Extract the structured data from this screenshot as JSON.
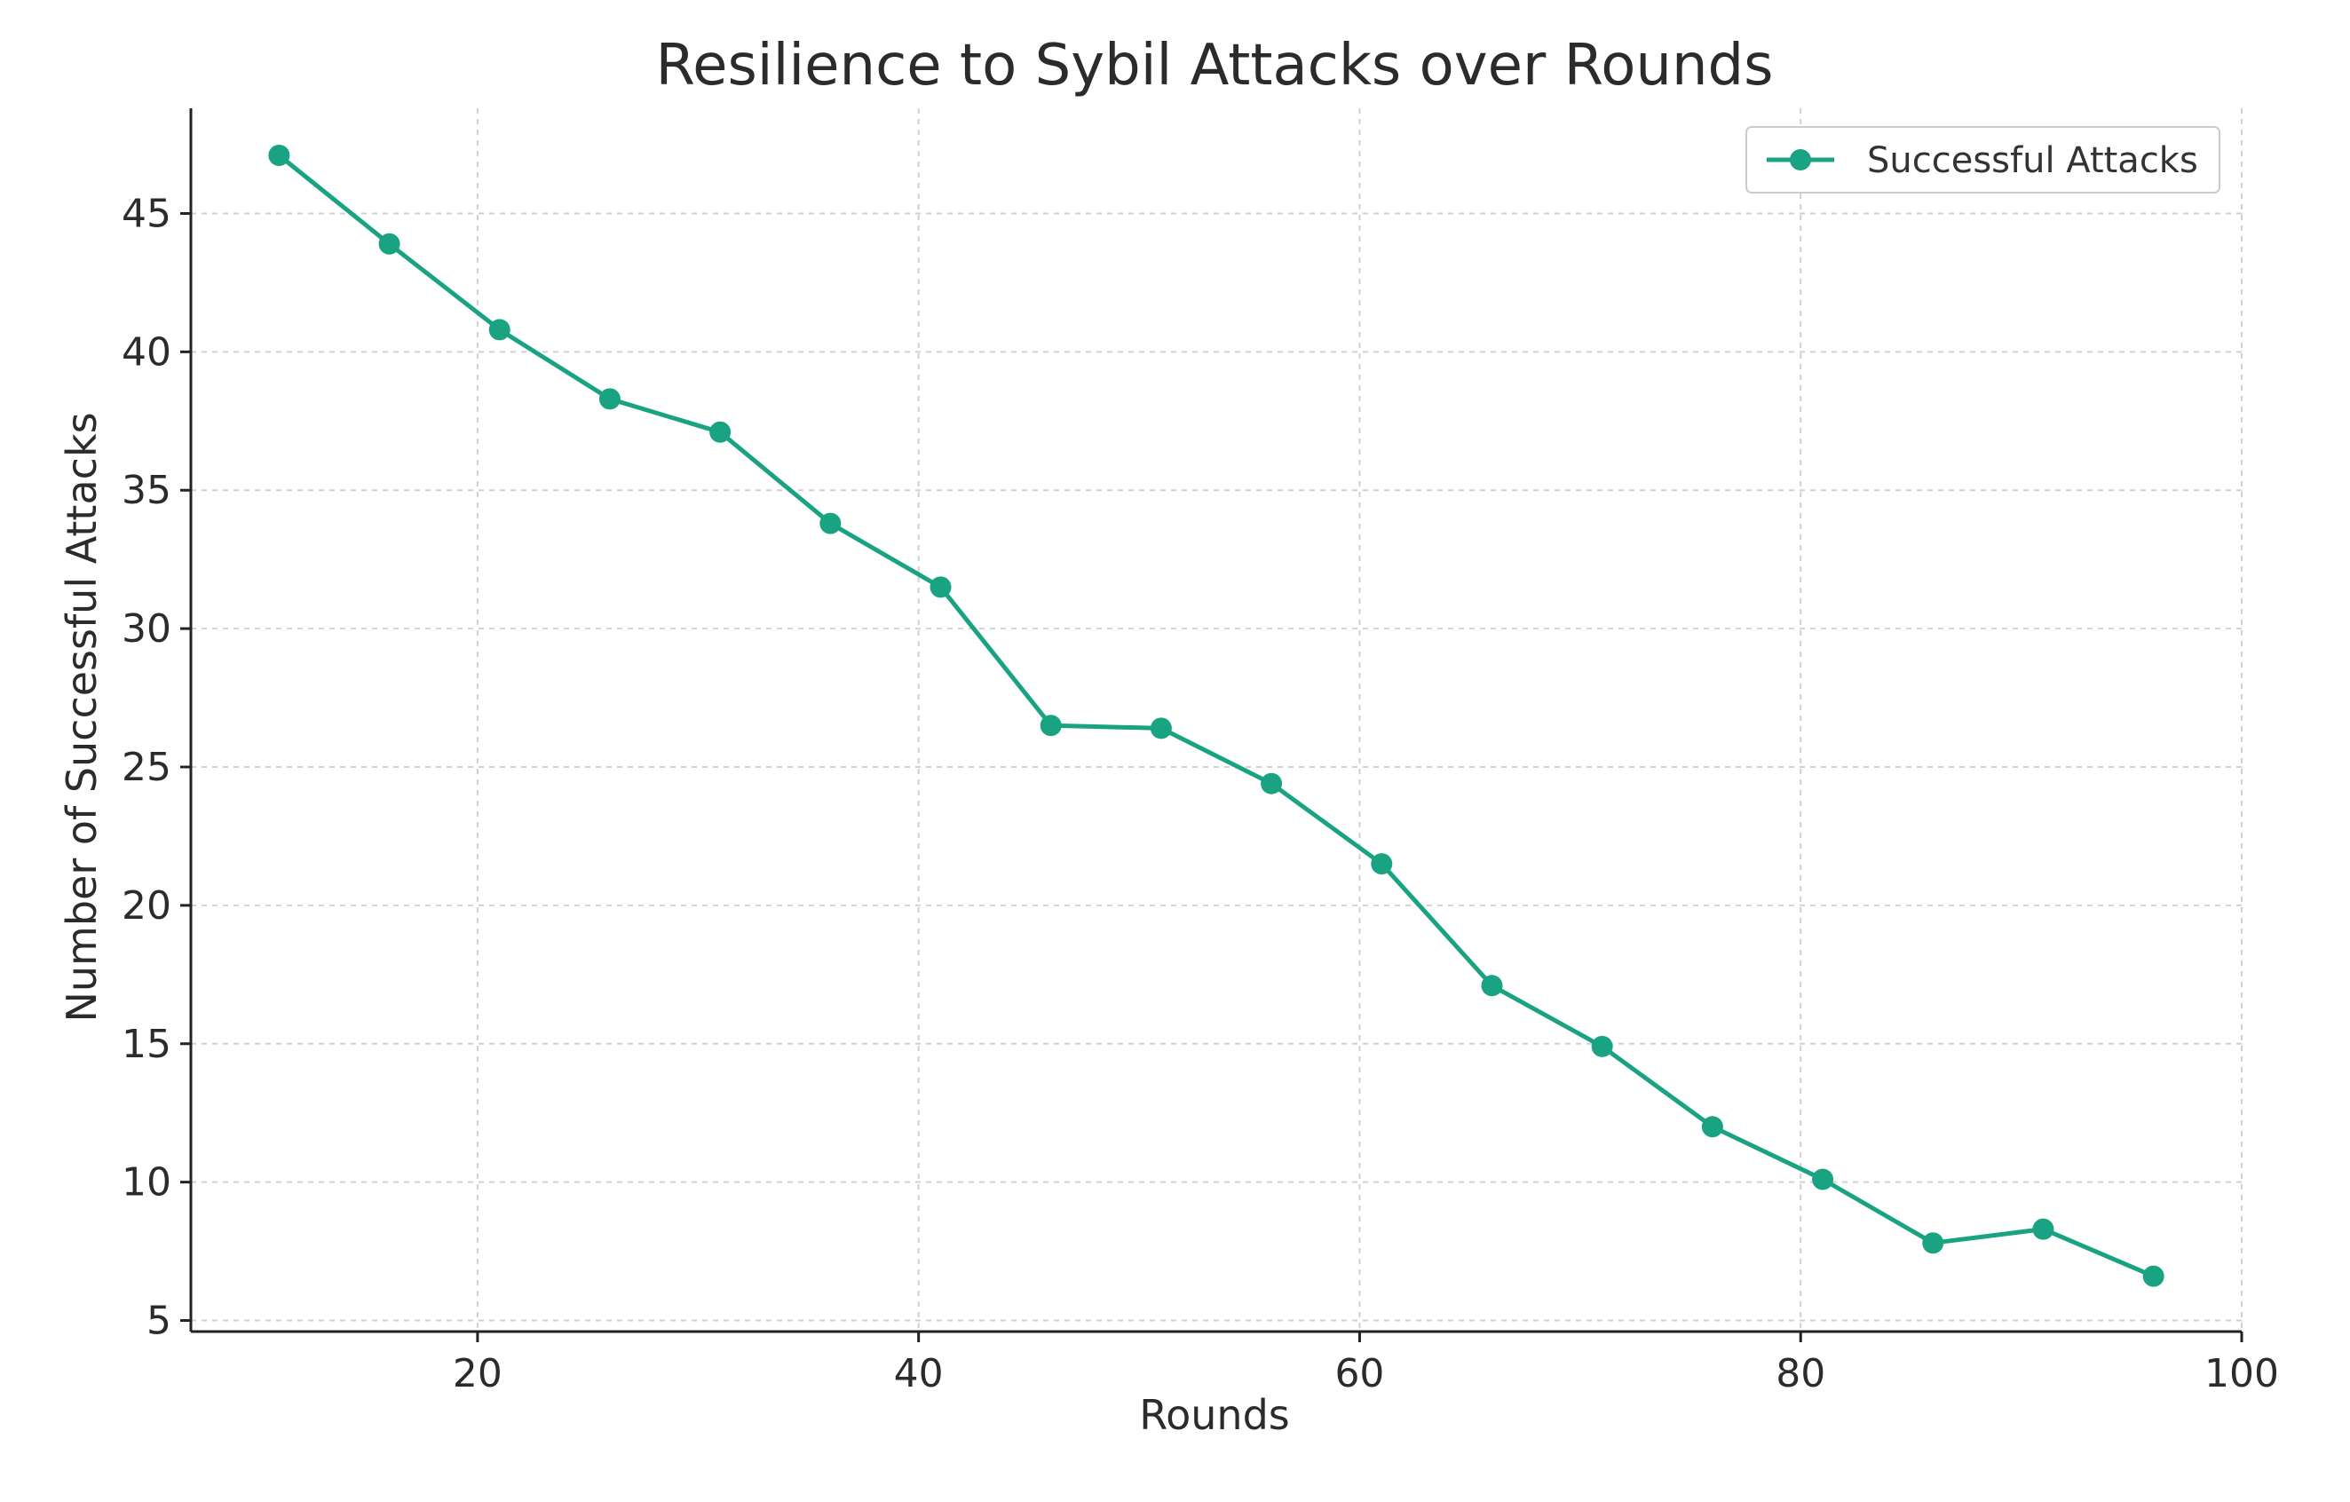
{
  "chart_data": {
    "type": "line",
    "title": "Resilience to Sybil Attacks over Rounds",
    "xlabel": "Rounds",
    "ylabel": "Number of Successful Attacks",
    "xlim": [
      7,
      100
    ],
    "ylim": [
      4.6,
      48.8
    ],
    "xticks": [
      20,
      40,
      60,
      80,
      100
    ],
    "yticks": [
      5,
      10,
      15,
      20,
      25,
      30,
      35,
      40,
      45
    ],
    "grid": true,
    "legend_position": "top-right",
    "colors": {
      "series": "#1aa383",
      "grid": "#d0d0d0",
      "axis": "#222222",
      "legend_border": "#cccccc"
    },
    "series": [
      {
        "name": "Successful Attacks",
        "marker": "circle",
        "x": [
          11,
          16,
          21,
          26,
          31,
          36,
          41,
          46,
          51,
          56,
          61,
          66,
          71,
          76,
          81,
          86,
          91,
          96
        ],
        "y": [
          47.1,
          43.9,
          40.8,
          38.3,
          37.1,
          33.8,
          31.5,
          26.5,
          26.4,
          24.4,
          21.5,
          17.1,
          14.9,
          12.0,
          10.1,
          7.8,
          8.3,
          6.6
        ]
      }
    ]
  }
}
